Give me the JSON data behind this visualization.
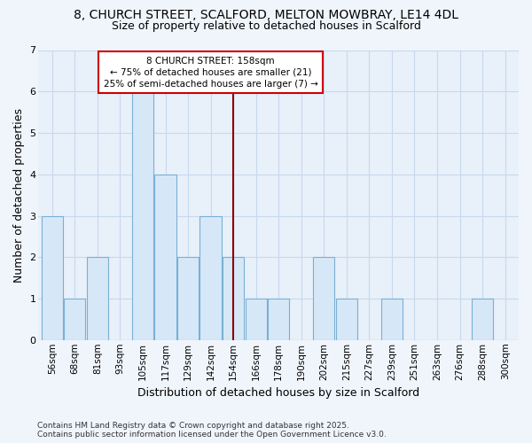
{
  "title_line1": "8, CHURCH STREET, SCALFORD, MELTON MOWBRAY, LE14 4DL",
  "title_line2": "Size of property relative to detached houses in Scalford",
  "xlabel": "Distribution of detached houses by size in Scalford",
  "ylabel": "Number of detached properties",
  "footer": "Contains HM Land Registry data © Crown copyright and database right 2025.\nContains public sector information licensed under the Open Government Licence v3.0.",
  "categories": [
    "56sqm",
    "68sqm",
    "81sqm",
    "93sqm",
    "105sqm",
    "117sqm",
    "129sqm",
    "142sqm",
    "154sqm",
    "166sqm",
    "178sqm",
    "190sqm",
    "202sqm",
    "215sqm",
    "227sqm",
    "239sqm",
    "251sqm",
    "263sqm",
    "276sqm",
    "288sqm",
    "300sqm"
  ],
  "values": [
    3,
    1,
    2,
    0,
    6,
    4,
    2,
    3,
    2,
    1,
    1,
    0,
    2,
    1,
    0,
    1,
    0,
    0,
    0,
    1,
    0
  ],
  "bar_color": "#d6e8f7",
  "bar_edge_color": "#7ab0d4",
  "reference_line_index": 8,
  "reference_line_color": "#8b0000",
  "annotation_text": "8 CHURCH STREET: 158sqm\n← 75% of detached houses are smaller (21)\n25% of semi-detached houses are larger (7) →",
  "annotation_box_color": "#cc0000",
  "ylim": [
    0,
    7
  ],
  "yticks": [
    0,
    1,
    2,
    3,
    4,
    5,
    6,
    7
  ],
  "plot_bg_color": "#e8f0fa",
  "fig_bg_color": "#f0f5fc",
  "grid_color": "#c8d8ee",
  "title_fontsize": 10,
  "subtitle_fontsize": 9,
  "axis_label_fontsize": 9,
  "tick_fontsize": 7.5,
  "footer_fontsize": 6.5
}
